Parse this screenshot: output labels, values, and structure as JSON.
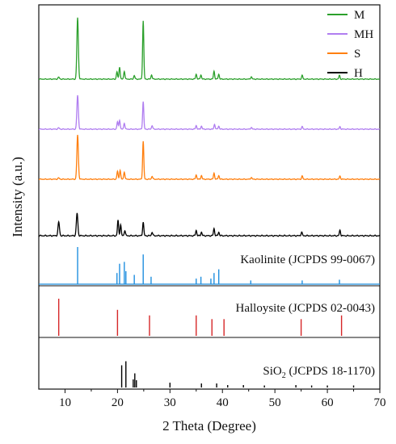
{
  "chart_data": {
    "type": "line",
    "xlabel": "2 Theta (Degree)",
    "ylabel": "Intensity (a.u.)",
    "xlim": [
      5,
      70
    ],
    "x_ticks": [
      "10",
      "20",
      "30",
      "40",
      "50",
      "60",
      "70"
    ],
    "grid": false,
    "legend_position": "top-right",
    "colors": {
      "M": "#2ca02c",
      "MH": "#b07ef0",
      "S": "#ff7f0e",
      "H": "#000000",
      "kaolinite": "#1f8fdf",
      "halloysite": "#d62728",
      "sio2": "#000000"
    },
    "series": [
      {
        "name": "M",
        "color": "#2ca02c",
        "peaks": [
          [
            8.8,
            0.03
          ],
          [
            12.4,
            1.0
          ],
          [
            19.9,
            0.12
          ],
          [
            20.4,
            0.2
          ],
          [
            21.3,
            0.13
          ],
          [
            23.2,
            0.06
          ],
          [
            24.9,
            0.95
          ],
          [
            26.5,
            0.07
          ],
          [
            35.0,
            0.08
          ],
          [
            35.9,
            0.07
          ],
          [
            38.4,
            0.13
          ],
          [
            39.3,
            0.08
          ],
          [
            45.5,
            0.04
          ],
          [
            55.2,
            0.06
          ],
          [
            62.3,
            0.06
          ]
        ]
      },
      {
        "name": "MH",
        "color": "#b07ef0",
        "peaks": [
          [
            8.8,
            0.02
          ],
          [
            12.4,
            0.55
          ],
          [
            20.0,
            0.12
          ],
          [
            20.4,
            0.15
          ],
          [
            21.3,
            0.1
          ],
          [
            24.9,
            0.45
          ],
          [
            26.6,
            0.06
          ],
          [
            35.0,
            0.06
          ],
          [
            36.0,
            0.05
          ],
          [
            38.5,
            0.08
          ],
          [
            39.3,
            0.05
          ],
          [
            45.5,
            0.03
          ],
          [
            55.2,
            0.04
          ],
          [
            62.4,
            0.04
          ]
        ]
      },
      {
        "name": "S",
        "color": "#ff7f0e",
        "peaks": [
          [
            8.8,
            0.02
          ],
          [
            12.4,
            0.72
          ],
          [
            20.0,
            0.13
          ],
          [
            20.5,
            0.15
          ],
          [
            21.3,
            0.12
          ],
          [
            24.9,
            0.62
          ],
          [
            26.6,
            0.05
          ],
          [
            35.0,
            0.07
          ],
          [
            36.0,
            0.06
          ],
          [
            38.4,
            0.1
          ],
          [
            39.3,
            0.06
          ],
          [
            45.5,
            0.03
          ],
          [
            55.2,
            0.05
          ],
          [
            62.4,
            0.05
          ]
        ]
      },
      {
        "name": "H",
        "color": "#000000",
        "peaks": [
          [
            8.8,
            0.15
          ],
          [
            12.3,
            0.25
          ],
          [
            20.1,
            0.17
          ],
          [
            20.6,
            0.12
          ],
          [
            21.4,
            0.06
          ],
          [
            24.9,
            0.15
          ],
          [
            26.6,
            0.04
          ],
          [
            35.0,
            0.06
          ],
          [
            36.0,
            0.04
          ],
          [
            38.4,
            0.08
          ],
          [
            39.3,
            0.04
          ],
          [
            55.1,
            0.04
          ],
          [
            62.4,
            0.06
          ]
        ]
      }
    ],
    "reference_patterns": [
      {
        "name": "Kaolinite",
        "label": "Kaolinite (JCPDS 99-0067)",
        "color": "#1f8fdf",
        "lines": [
          [
            12.4,
            1.0
          ],
          [
            19.9,
            0.3
          ],
          [
            20.4,
            0.55
          ],
          [
            21.3,
            0.6
          ],
          [
            21.6,
            0.35
          ],
          [
            23.2,
            0.25
          ],
          [
            24.9,
            0.8
          ],
          [
            26.4,
            0.2
          ],
          [
            35.0,
            0.15
          ],
          [
            35.9,
            0.2
          ],
          [
            37.8,
            0.15
          ],
          [
            38.4,
            0.3
          ],
          [
            39.3,
            0.4
          ],
          [
            45.4,
            0.1
          ],
          [
            55.2,
            0.1
          ],
          [
            62.3,
            0.12
          ]
        ]
      },
      {
        "name": "Halloysite",
        "label": "Halloysite (JCPDS 02-0043)",
        "color": "#d62728",
        "lines": [
          [
            8.8,
            1.0
          ],
          [
            20.0,
            0.7
          ],
          [
            26.1,
            0.55
          ],
          [
            35.0,
            0.55
          ],
          [
            38.0,
            0.45
          ],
          [
            40.3,
            0.45
          ],
          [
            55.0,
            0.45
          ],
          [
            62.7,
            0.55
          ]
        ]
      },
      {
        "name": "SiO2",
        "label_main": "SiO",
        "label_sub": "2",
        "label_rest": " (JCPDS 18-1170)",
        "color": "#000000",
        "lines": [
          [
            20.8,
            0.55
          ],
          [
            21.6,
            0.65
          ],
          [
            23.0,
            0.2
          ],
          [
            23.3,
            0.35
          ],
          [
            23.6,
            0.18
          ],
          [
            30.0,
            0.12
          ],
          [
            36.0,
            0.1
          ],
          [
            38.9,
            0.1
          ],
          [
            41.0,
            0.06
          ],
          [
            44.0,
            0.06
          ],
          [
            48.0,
            0.05
          ],
          [
            54.0,
            0.06
          ],
          [
            57.0,
            0.05
          ],
          [
            60.0,
            0.05
          ],
          [
            65.0,
            0.05
          ]
        ]
      }
    ]
  }
}
